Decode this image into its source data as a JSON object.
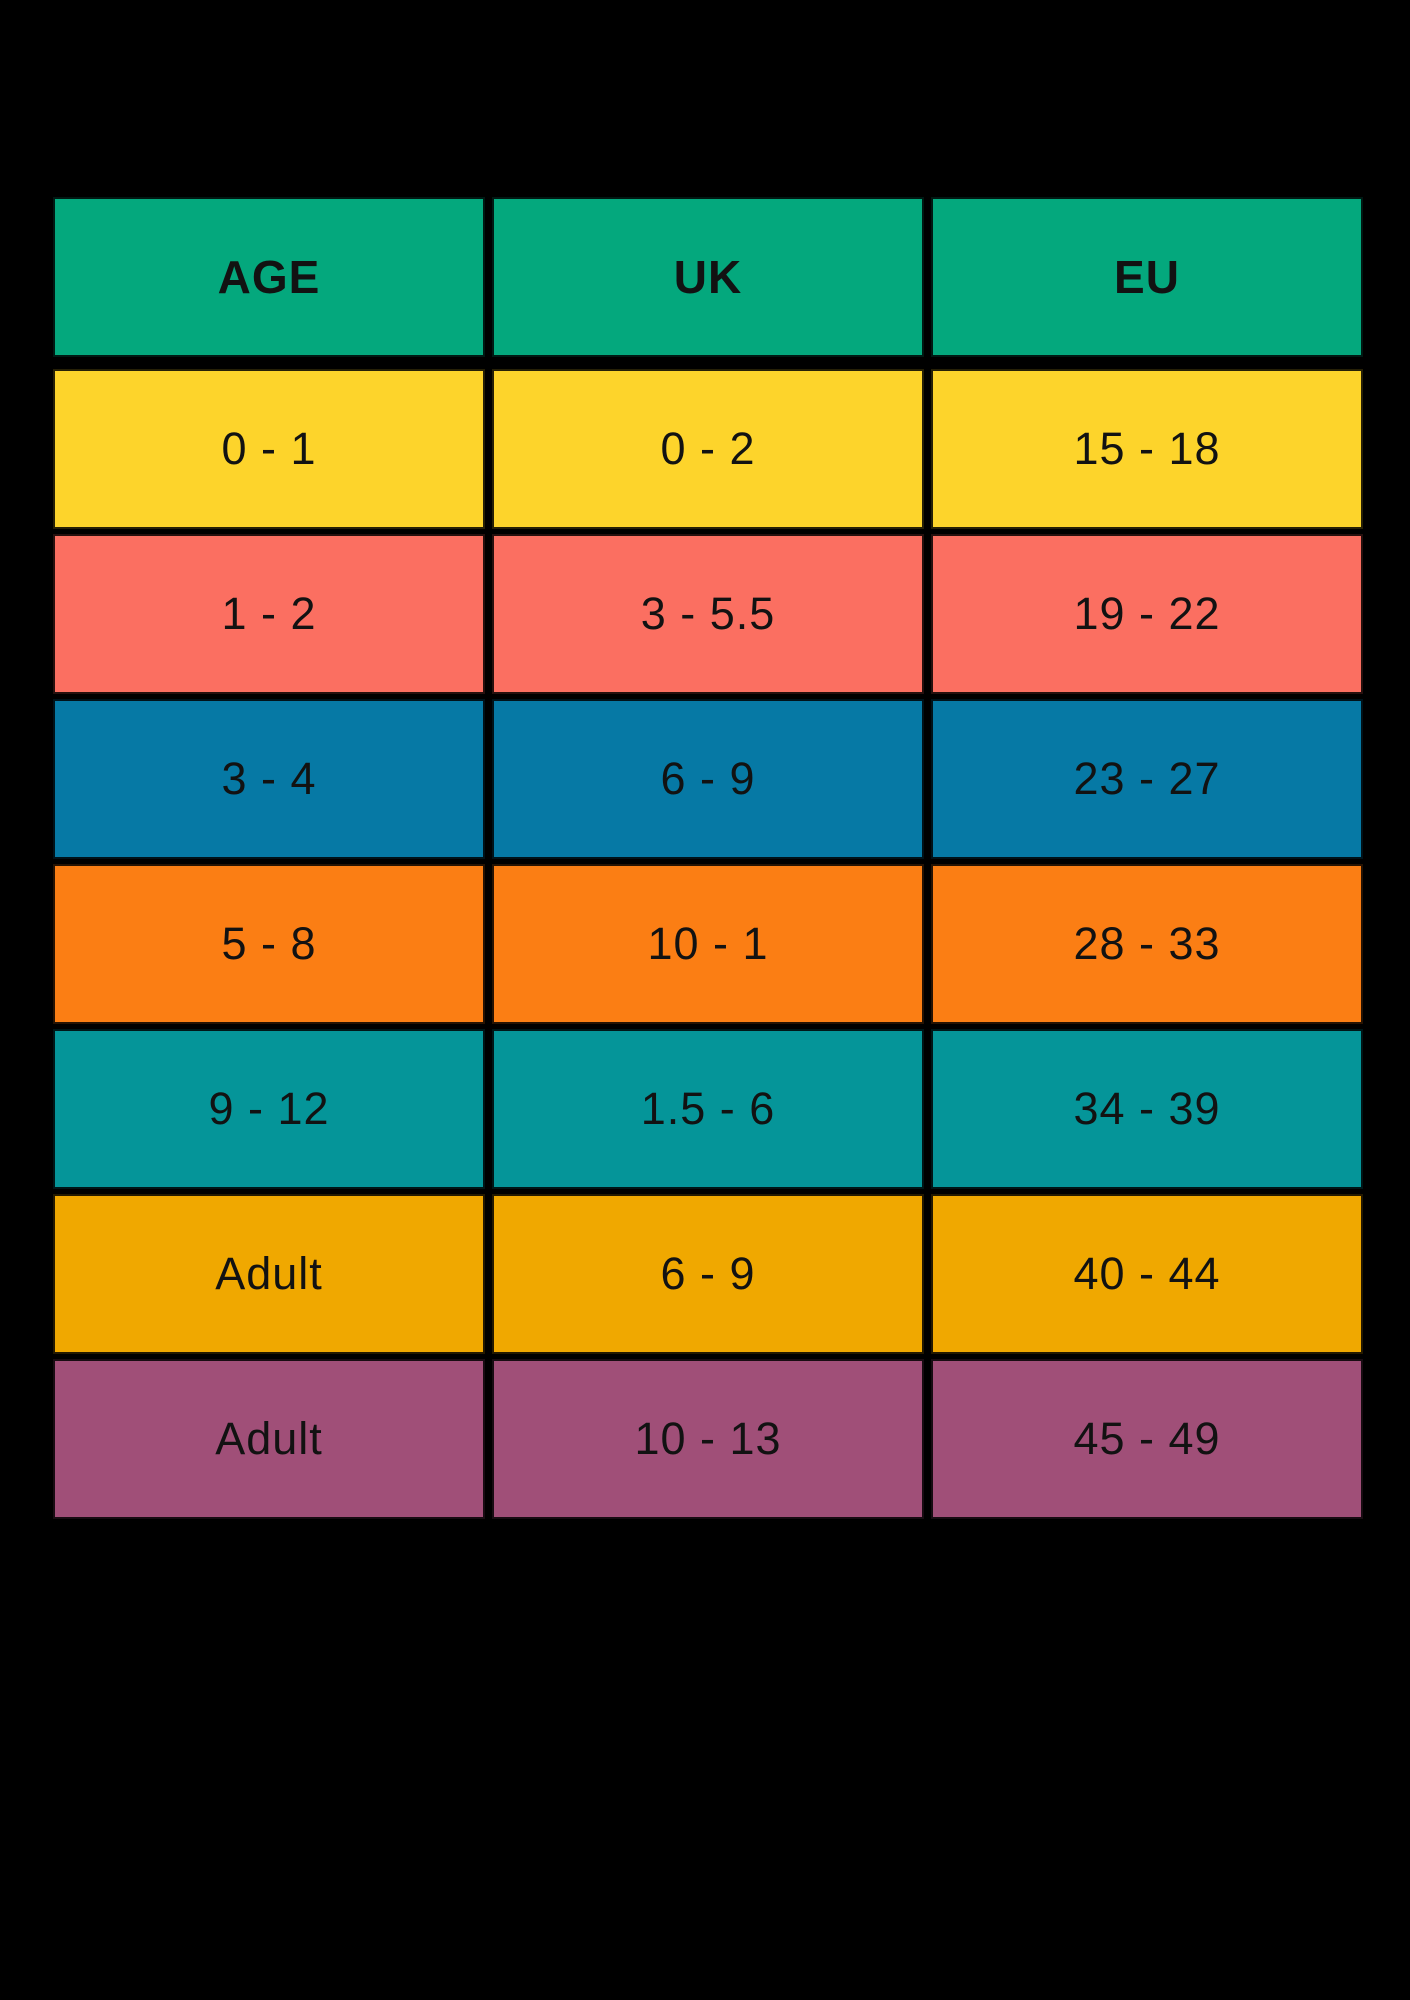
{
  "page": {
    "background_color": "#000000",
    "text_color": "#121212"
  },
  "chart_data": {
    "type": "table",
    "title": "",
    "columns": [
      "AGE",
      "UK",
      "EU"
    ],
    "rows": [
      [
        "0 - 1",
        "0 - 2",
        "15 - 18"
      ],
      [
        "1 - 2",
        "3 - 5.5",
        "19 - 22"
      ],
      [
        "3 - 4",
        "6 - 9",
        "23 - 27"
      ],
      [
        "5 - 8",
        "10 - 1",
        "28 - 33"
      ],
      [
        "9 - 12",
        "1.5 - 6",
        "34 - 39"
      ],
      [
        "Adult",
        "6 - 9",
        "40 - 44"
      ],
      [
        "Adult",
        "10 - 13",
        "45 - 49"
      ]
    ],
    "header_color": "#04A87D",
    "row_colors": [
      "#FDD42B",
      "#FB6F61",
      "#0679A5",
      "#FB7E14",
      "#059599",
      "#F0A800",
      "#A04F78"
    ],
    "grid": "black gaps between cells",
    "legend_position": "none"
  }
}
